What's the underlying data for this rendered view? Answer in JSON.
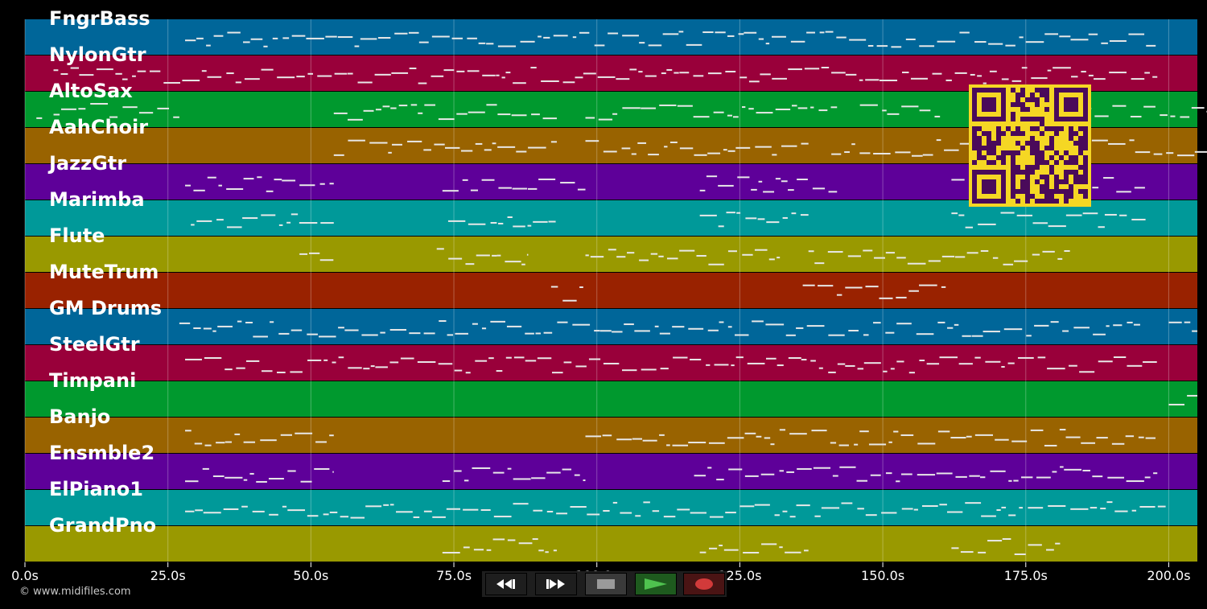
{
  "tracks": [
    {
      "name": "FngrBass",
      "color": "#006699"
    },
    {
      "name": "NylonGtr",
      "color": "#99003a"
    },
    {
      "name": "AltoSax",
      "color": "#00992e"
    },
    {
      "name": "AahChoir",
      "color": "#996300"
    },
    {
      "name": "JazzGtr",
      "color": "#5e0099"
    },
    {
      "name": "Marimba",
      "color": "#009999"
    },
    {
      "name": "Flute",
      "color": "#999900"
    },
    {
      "name": "MuteTrum",
      "color": "#992200"
    },
    {
      "name": "GM Drums",
      "color": "#006699"
    },
    {
      "name": "SteelGtr",
      "color": "#99003a"
    },
    {
      "name": "Timpani",
      "color": "#00992e"
    },
    {
      "name": "Banjo",
      "color": "#996300"
    },
    {
      "name": "Ensmble2",
      "color": "#5e0099"
    },
    {
      "name": "ElPiano1",
      "color": "#009999"
    },
    {
      "name": "GrandPno",
      "color": "#999900"
    }
  ],
  "time_axis": {
    "ticks": [
      "0.0s",
      "25.0s",
      "50.0s",
      "75.0s",
      "100.0s",
      "125.0s",
      "150.0s",
      "175.0s",
      "200.0s"
    ],
    "max_seconds": 205
  },
  "note_segments": [
    [
      [
        28,
        198
      ]
    ],
    [
      [
        5,
        198
      ]
    ],
    [
      [
        2,
        3
      ],
      [
        5,
        27
      ],
      [
        54,
        93
      ],
      [
        98,
        142
      ],
      [
        146,
        160
      ],
      [
        170,
        207
      ]
    ],
    [
      [
        54,
        93
      ],
      [
        98,
        137
      ],
      [
        141,
        207
      ]
    ],
    [
      [
        28,
        54
      ],
      [
        73,
        98
      ],
      [
        118,
        142
      ],
      [
        162,
        196
      ]
    ],
    [
      [
        29,
        54
      ],
      [
        74,
        93
      ],
      [
        118,
        137
      ],
      [
        162,
        196
      ]
    ],
    [
      [
        48,
        54
      ],
      [
        72,
        88
      ],
      [
        98,
        132
      ],
      [
        137,
        183
      ]
    ],
    [
      [
        92,
        98
      ],
      [
        136,
        161
      ]
    ],
    [
      [
        27,
        195
      ],
      [
        200,
        205
      ]
    ],
    [
      [
        28,
        198
      ]
    ],
    [
      [
        200,
        205
      ]
    ],
    [
      [
        28,
        54
      ],
      [
        98,
        198
      ]
    ],
    [
      [
        28,
        54
      ],
      [
        73,
        98
      ],
      [
        117,
        198
      ]
    ],
    [
      [
        28,
        200
      ]
    ],
    [
      [
        73,
        93
      ],
      [
        118,
        137
      ],
      [
        162,
        181
      ]
    ]
  ],
  "copyright": "© www.midifiles.com",
  "transport": [
    {
      "name": "rewind-button",
      "icon": "rewind-icon",
      "color": "#2a2a2a"
    },
    {
      "name": "fast-forward-button",
      "icon": "fast-forward-icon",
      "color": "#2a2a2a"
    },
    {
      "name": "stop-button",
      "icon": "stop-icon",
      "color": "#3a3a3a"
    },
    {
      "name": "play-button",
      "icon": "play-icon",
      "color": "#1e5a1e"
    },
    {
      "name": "record-button",
      "icon": "record-icon",
      "color": "#4a1414"
    }
  ],
  "qr_code": {
    "icon": "qr-code-icon",
    "background": "#f5d724",
    "foreground": "#4a0a5a"
  }
}
